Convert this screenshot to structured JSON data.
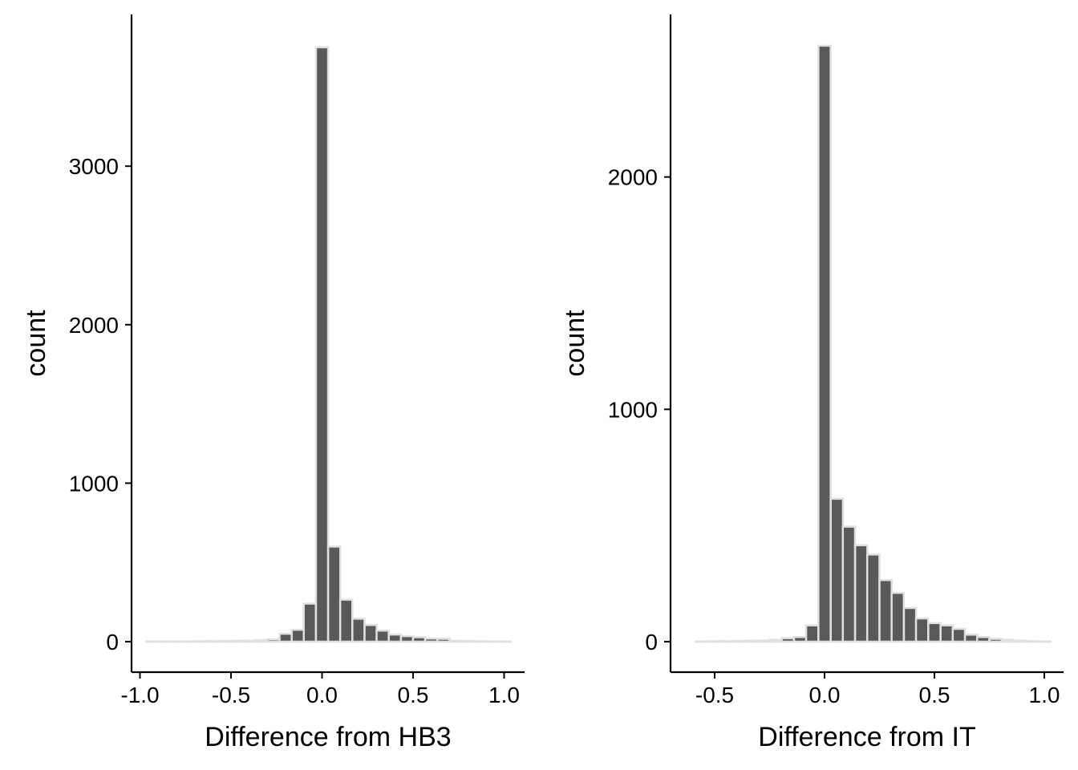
{
  "chart_data": [
    {
      "type": "bar",
      "title": "",
      "xlabel": "Difference from HB3",
      "ylabel": "count",
      "xlim": [
        -1.0,
        1.0
      ],
      "ylim": [
        0,
        3760
      ],
      "xticks": [
        -1.0,
        -0.5,
        0.0,
        0.5,
        1.0
      ],
      "xtick_labels": [
        "-1.0",
        "-0.5",
        "0.0",
        "0.5",
        "1.0"
      ],
      "yticks": [
        0,
        1000,
        2000,
        3000
      ],
      "ytick_labels": [
        "0",
        "1000",
        "2000",
        "3000"
      ],
      "grid": false,
      "legend": "none",
      "bin_width": 0.0667,
      "bins": [
        {
          "x": -0.933,
          "count": 1
        },
        {
          "x": -0.867,
          "count": 1
        },
        {
          "x": -0.8,
          "count": 2
        },
        {
          "x": -0.733,
          "count": 2
        },
        {
          "x": -0.667,
          "count": 3
        },
        {
          "x": -0.6,
          "count": 3
        },
        {
          "x": -0.533,
          "count": 4
        },
        {
          "x": -0.467,
          "count": 5
        },
        {
          "x": -0.4,
          "count": 6
        },
        {
          "x": -0.333,
          "count": 10
        },
        {
          "x": -0.267,
          "count": 15
        },
        {
          "x": -0.2,
          "count": 50
        },
        {
          "x": -0.133,
          "count": 75
        },
        {
          "x": -0.067,
          "count": 240
        },
        {
          "x": 0.0,
          "count": 3750
        },
        {
          "x": 0.067,
          "count": 600
        },
        {
          "x": 0.133,
          "count": 265
        },
        {
          "x": 0.2,
          "count": 145
        },
        {
          "x": 0.267,
          "count": 105
        },
        {
          "x": 0.333,
          "count": 70
        },
        {
          "x": 0.4,
          "count": 45
        },
        {
          "x": 0.467,
          "count": 35
        },
        {
          "x": 0.533,
          "count": 28
        },
        {
          "x": 0.6,
          "count": 20
        },
        {
          "x": 0.667,
          "count": 18
        },
        {
          "x": 0.733,
          "count": 5
        },
        {
          "x": 0.8,
          "count": 4
        },
        {
          "x": 0.867,
          "count": 3
        },
        {
          "x": 0.933,
          "count": 2
        },
        {
          "x": 1.0,
          "count": 1
        }
      ]
    },
    {
      "type": "bar",
      "title": "",
      "xlabel": "Difference from IT",
      "ylabel": "count",
      "xlim": [
        -0.62,
        1.0
      ],
      "ylim": [
        0,
        2565
      ],
      "xticks": [
        -0.5,
        0.0,
        0.5,
        1.0
      ],
      "xtick_labels": [
        "-0.5",
        "0.0",
        "0.5",
        "1.0"
      ],
      "yticks": [
        0,
        1000,
        2000
      ],
      "ytick_labels": [
        "0",
        "1000",
        "2000"
      ],
      "grid": false,
      "legend": "none",
      "bin_width": 0.0556,
      "bins": [
        {
          "x": -0.556,
          "count": 1
        },
        {
          "x": -0.5,
          "count": 2
        },
        {
          "x": -0.444,
          "count": 2
        },
        {
          "x": -0.389,
          "count": 3
        },
        {
          "x": -0.333,
          "count": 4
        },
        {
          "x": -0.278,
          "count": 5
        },
        {
          "x": -0.222,
          "count": 8
        },
        {
          "x": -0.167,
          "count": 15
        },
        {
          "x": -0.111,
          "count": 20
        },
        {
          "x": -0.056,
          "count": 70
        },
        {
          "x": 0.0,
          "count": 2565
        },
        {
          "x": 0.056,
          "count": 615
        },
        {
          "x": 0.111,
          "count": 495
        },
        {
          "x": 0.167,
          "count": 415
        },
        {
          "x": 0.222,
          "count": 375
        },
        {
          "x": 0.278,
          "count": 265
        },
        {
          "x": 0.333,
          "count": 210
        },
        {
          "x": 0.389,
          "count": 145
        },
        {
          "x": 0.444,
          "count": 100
        },
        {
          "x": 0.5,
          "count": 80
        },
        {
          "x": 0.556,
          "count": 70
        },
        {
          "x": 0.611,
          "count": 55
        },
        {
          "x": 0.667,
          "count": 30
        },
        {
          "x": 0.722,
          "count": 20
        },
        {
          "x": 0.778,
          "count": 12
        },
        {
          "x": 0.833,
          "count": 8
        },
        {
          "x": 0.889,
          "count": 5
        },
        {
          "x": 0.944,
          "count": 2
        },
        {
          "x": 1.0,
          "count": 1
        }
      ]
    }
  ],
  "colors": {
    "bar_fill": "#595959",
    "bar_outline": "#e0e0e0",
    "axis": "#000000",
    "background": "#ffffff"
  }
}
